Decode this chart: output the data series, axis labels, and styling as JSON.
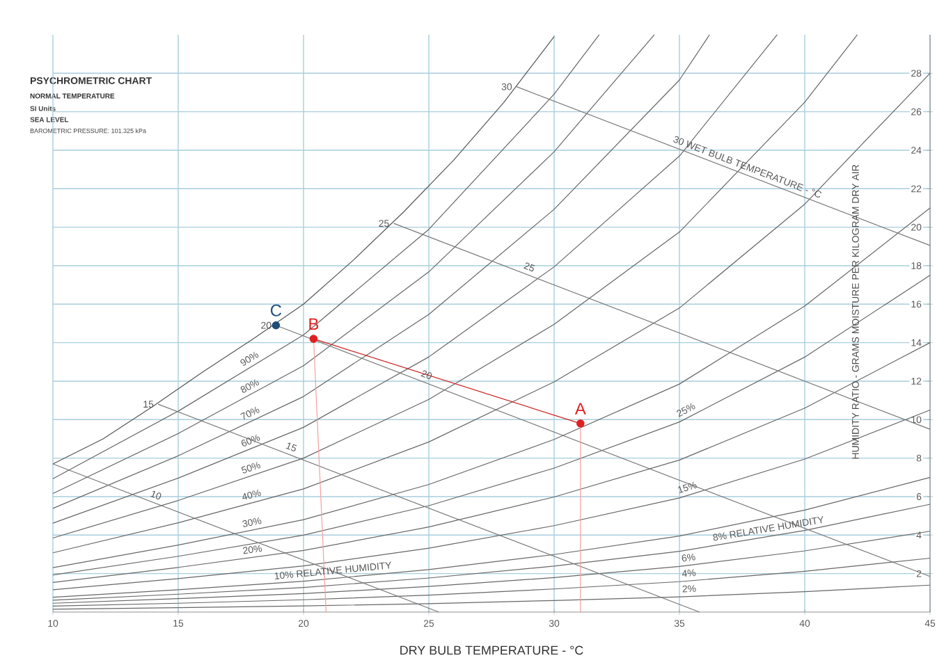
{
  "chart_data": {
    "type": "line",
    "title": "PSYCHROMETRIC CHART",
    "subtitle": "NORMAL TEMPERATURE",
    "xlabel": "DRY BULB TEMPERATURE - °C",
    "ylabel": "HUMIDITY RATIO - GRAMS MOISTURE PER KILOGRAM DRY AIR",
    "xlim": [
      10,
      45
    ],
    "ylim": [
      0,
      30
    ],
    "xticks": [
      10,
      15,
      20,
      25,
      30,
      35,
      40,
      45
    ],
    "yticks": [
      2,
      4,
      6,
      8,
      10,
      12,
      14,
      16,
      18,
      20,
      22,
      24,
      26,
      28
    ],
    "grid": true,
    "line_style": "solid",
    "series": [
      {
        "color": "#666666",
        "x": [
          10,
          15,
          20,
          25,
          30,
          35,
          40,
          45
        ],
        "values": [
          0.15,
          0.23,
          0.32,
          0.44,
          0.6,
          0.79,
          1.06,
          1.4
        ]
      },
      {
        "color": "#666666",
        "x": [
          10,
          15,
          20,
          25,
          30,
          35,
          40,
          45
        ],
        "values": [
          0.31,
          0.46,
          0.64,
          0.88,
          1.2,
          1.58,
          2.12,
          2.8
        ]
      },
      {
        "color": "#666666",
        "x": [
          10,
          15,
          20,
          25,
          30,
          35,
          40,
          45
        ],
        "values": [
          0.46,
          0.7,
          0.96,
          1.33,
          1.79,
          2.37,
          3.18,
          4.2
        ]
      },
      {
        "color": "#666666",
        "x": [
          10,
          15,
          20,
          25,
          30,
          35,
          40,
          45
        ],
        "values": [
          0.62,
          0.93,
          1.28,
          1.77,
          2.39,
          3.16,
          4.24,
          5.6
        ]
      },
      {
        "color": "#666666",
        "x": [
          10,
          15,
          20,
          25,
          30,
          35,
          40,
          45
        ],
        "values": [
          0.77,
          1.16,
          1.6,
          2.21,
          2.99,
          3.95,
          5.3,
          7.0
        ]
      },
      {
        "color": "#666666",
        "x": [
          10,
          15,
          20,
          25,
          30,
          35,
          40,
          45
        ],
        "values": [
          1.16,
          1.74,
          2.4,
          3.32,
          4.49,
          5.93,
          7.95,
          10.5
        ]
      },
      {
        "color": "#666666",
        "x": [
          10,
          15,
          20,
          25,
          30,
          35,
          40,
          45
        ],
        "values": [
          1.54,
          2.32,
          3.2,
          4.42,
          5.98,
          7.9,
          10.6,
          14.0
        ]
      },
      {
        "color": "#666666",
        "x": [
          10,
          15,
          20,
          25,
          30,
          35,
          40,
          45
        ],
        "values": [
          1.93,
          2.9,
          4.0,
          5.53,
          7.48,
          9.88,
          13.25,
          17.5
        ]
      },
      {
        "color": "#666666",
        "x": [
          10,
          15,
          20,
          25,
          30,
          35,
          40,
          45
        ],
        "values": [
          2.31,
          3.48,
          4.8,
          6.63,
          8.97,
          11.85,
          15.9,
          21.0
        ]
      },
      {
        "color": "#666666",
        "x": [
          10,
          15,
          20,
          25,
          30,
          35,
          40,
          45
        ],
        "values": [
          3.08,
          4.64,
          6.4,
          8.84,
          11.96,
          15.8,
          21.2,
          28.0
        ]
      },
      {
        "color": "#666666",
        "x": [
          10,
          15,
          20,
          25,
          30,
          35,
          40,
          42.1
        ],
        "values": [
          3.85,
          5.8,
          8.0,
          11.05,
          14.95,
          19.75,
          26.5,
          30
        ]
      },
      {
        "color": "#666666",
        "x": [
          10,
          15,
          20,
          25,
          30,
          35,
          38.9
        ],
        "values": [
          4.62,
          6.96,
          9.6,
          13.26,
          17.94,
          23.7,
          30
        ]
      },
      {
        "color": "#666666",
        "x": [
          10,
          15,
          20,
          25,
          30,
          35,
          36.2
        ],
        "values": [
          5.39,
          8.12,
          11.2,
          15.47,
          20.93,
          27.65,
          30
        ]
      },
      {
        "color": "#666666",
        "x": [
          10,
          15,
          20,
          25,
          30,
          34.0
        ],
        "values": [
          6.16,
          9.28,
          12.8,
          17.68,
          23.92,
          30
        ]
      },
      {
        "color": "#666666",
        "x": [
          10,
          15,
          20,
          25,
          30,
          31.8
        ],
        "values": [
          6.93,
          10.44,
          14.4,
          19.89,
          26.91,
          30
        ]
      },
      {
        "color": "#555555",
        "x": [
          10,
          12,
          14,
          16,
          18,
          20,
          22,
          24,
          26,
          28,
          30
        ],
        "values": [
          7.7,
          9.0,
          10.7,
          12.5,
          14.2,
          16.0,
          18.3,
          20.8,
          23.5,
          26.5,
          29.9
        ]
      },
      {
        "color": "#777777",
        "x": [
          10,
          25.4
        ],
        "values": [
          7.7,
          0
        ]
      },
      {
        "color": "#777777",
        "x": [
          14.2,
          35.8
        ],
        "values": [
          10.8,
          0
        ]
      },
      {
        "color": "#777777",
        "x": [
          18.9,
          45
        ],
        "values": [
          14.9,
          1.85
        ]
      },
      {
        "color": "#777777",
        "x": [
          23.6,
          45
        ],
        "values": [
          20.2,
          9.5
        ]
      },
      {
        "color": "#777777",
        "x": [
          28.5,
          45
        ],
        "values": [
          27.3,
          19.05
        ]
      },
      {
        "color": "#f4a0a0",
        "x": [
          20.4,
          20.9
        ],
        "values": [
          14.2,
          0
        ]
      },
      {
        "color": "#f4a0a0",
        "x": [
          31.05,
          31.05
        ],
        "values": [
          9.8,
          0
        ]
      },
      {
        "color": "#cc1f1f",
        "x": [
          20.4,
          31.05
        ],
        "values": [
          14.2,
          9.8
        ]
      },
      {
        "type": "scatter",
        "name": "A",
        "color": "#e02020",
        "x": [
          31.05
        ],
        "values": [
          9.8
        ]
      },
      {
        "type": "scatter",
        "name": "B",
        "color": "#e02020",
        "x": [
          20.4
        ],
        "values": [
          14.2
        ]
      },
      {
        "type": "scatter",
        "name": "C",
        "color": "#1f4e79",
        "x": [
          18.9
        ],
        "values": [
          14.9
        ]
      }
    ],
    "annotations": [
      "SI Units",
      "SEA LEVEL",
      "BAROMETRIC PRESSURE: 101.325 kPa",
      {
        "text": "90%",
        "x": 18,
        "y": 12.82
      },
      {
        "text": "80%",
        "x": 18,
        "y": 11.39
      },
      {
        "text": "70%",
        "x": 18,
        "y": 9.97
      },
      {
        "text": "60%",
        "x": 18,
        "y": 8.54
      },
      {
        "text": "50%",
        "x": 18,
        "y": 7.12
      },
      {
        "text": "40%",
        "x": 18,
        "y": 5.7
      },
      {
        "text": "30%",
        "x": 18,
        "y": 4.27
      },
      {
        "text": "20%",
        "x": 18,
        "y": 2.85
      },
      {
        "text": "10% RELATIVE HUMIDITY",
        "x": 21.2,
        "y": 1.75
      },
      {
        "text": "25%",
        "x": 35.4,
        "y": 10.15
      },
      {
        "text": "15%",
        "x": 35.4,
        "y": 6.09
      },
      {
        "text": "8% RELATIVE HUMIDITY",
        "x": 38.6,
        "y": 3.94
      },
      {
        "text": "6%",
        "x": 35.4,
        "y": 2.43
      },
      {
        "text": "4%",
        "x": 35.4,
        "y": 1.62
      },
      {
        "text": "2%",
        "x": 35.4,
        "y": 0.81
      },
      {
        "text": "15",
        "x": 14.2,
        "y": 10.8
      },
      {
        "text": "20",
        "x": 18.9,
        "y": 14.9
      },
      {
        "text": "25",
        "x": 23.6,
        "y": 20.2
      },
      {
        "text": "30",
        "x": 28.5,
        "y": 27.3
      },
      {
        "text": "10",
        "x": 14,
        "y": 5.7
      },
      {
        "text": "15",
        "x": 19.4,
        "y": 8.2
      },
      {
        "text": "20",
        "x": 24.8,
        "y": 11.95
      },
      {
        "text": "25",
        "x": 28.9,
        "y": 17.55
      },
      {
        "text": "30 WET BULB TEMPERATURE - °C",
        "x": 37.6,
        "y": 22.75
      }
    ]
  }
}
